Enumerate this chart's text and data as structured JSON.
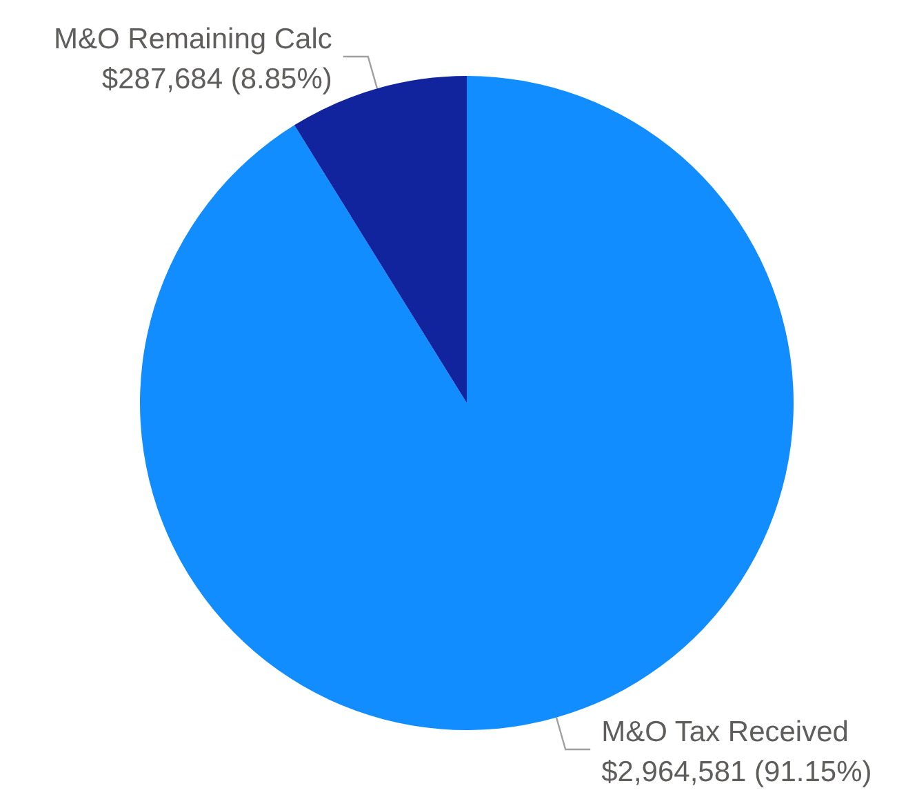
{
  "chart_data": {
    "type": "pie",
    "categories": [
      "M&O Tax Received",
      "M&O Remaining Calc"
    ],
    "values": [
      2964581,
      287684
    ],
    "colors": [
      "#118dff",
      "#12239e"
    ],
    "value_labels": [
      "$2,964,581 (91.15%)",
      "$287,684 (8.85%)"
    ],
    "legend": false
  }
}
